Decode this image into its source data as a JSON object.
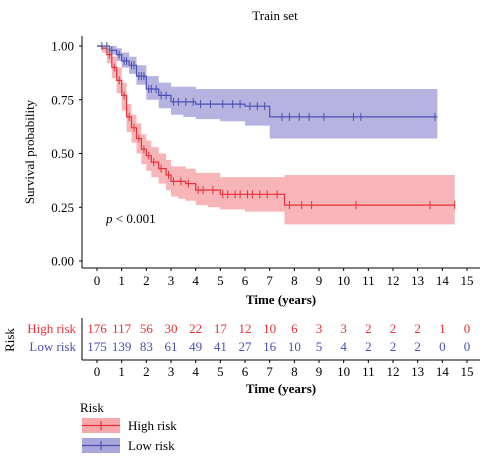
{
  "chart_data": {
    "type": "line",
    "title": "Train set",
    "xlabel": "Time (years)",
    "ylabel": "Survival probability",
    "xlim": [
      0,
      15
    ],
    "ylim": [
      0,
      1
    ],
    "x_ticks": [
      "0",
      "1",
      "2",
      "3",
      "4",
      "5",
      "6",
      "7",
      "8",
      "9",
      "10",
      "11",
      "12",
      "13",
      "14",
      "15"
    ],
    "y_ticks": [
      "0.00",
      "0.25",
      "0.50",
      "0.75",
      "1.00"
    ],
    "annotation_p": "p",
    "annotation_rest": " < 0.001",
    "colors": {
      "high": "#e8303a",
      "high_band": "#f7a8ab",
      "low": "#4a4fb0",
      "low_band": "#a9a6dc"
    },
    "series": [
      {
        "name": "High risk",
        "times": [
          0,
          0.2,
          0.4,
          0.6,
          0.8,
          1.0,
          1.2,
          1.4,
          1.6,
          1.8,
          2.0,
          2.2,
          2.5,
          2.8,
          3.0,
          3.3,
          3.6,
          4.0,
          4.5,
          5.0,
          5.5,
          6.0,
          6.5,
          7.0,
          7.5,
          7.6,
          8.0,
          9.0,
          10.0,
          11.0,
          12.0,
          13.0,
          14.0,
          14.5
        ],
        "values": [
          1.0,
          0.99,
          0.96,
          0.9,
          0.84,
          0.77,
          0.67,
          0.62,
          0.57,
          0.52,
          0.49,
          0.46,
          0.43,
          0.4,
          0.37,
          0.37,
          0.36,
          0.33,
          0.33,
          0.31,
          0.31,
          0.31,
          0.31,
          0.31,
          0.31,
          0.26,
          0.26,
          0.26,
          0.26,
          0.26,
          0.26,
          0.26,
          0.26,
          0.26
        ],
        "lower": [
          1.0,
          0.97,
          0.92,
          0.85,
          0.78,
          0.7,
          0.6,
          0.55,
          0.5,
          0.45,
          0.42,
          0.39,
          0.36,
          0.33,
          0.3,
          0.29,
          0.28,
          0.26,
          0.25,
          0.24,
          0.24,
          0.23,
          0.23,
          0.23,
          0.23,
          0.17,
          0.17,
          0.17,
          0.17,
          0.17,
          0.17,
          0.17,
          0.17,
          0.17
        ],
        "upper": [
          1.0,
          1.0,
          0.99,
          0.95,
          0.9,
          0.83,
          0.73,
          0.68,
          0.64,
          0.59,
          0.56,
          0.53,
          0.5,
          0.47,
          0.44,
          0.44,
          0.43,
          0.41,
          0.41,
          0.39,
          0.39,
          0.39,
          0.39,
          0.39,
          0.39,
          0.4,
          0.4,
          0.4,
          0.4,
          0.4,
          0.4,
          0.4,
          0.4,
          0.4
        ],
        "censor": [
          0.5,
          0.7,
          0.9,
          1.1,
          1.3,
          1.5,
          1.7,
          1.9,
          2.1,
          2.3,
          2.6,
          2.9,
          3.1,
          3.4,
          3.7,
          4.1,
          4.3,
          4.7,
          5.1,
          5.3,
          5.6,
          5.8,
          6.1,
          6.3,
          6.6,
          6.9,
          7.3,
          7.8,
          8.3,
          8.7,
          10.5,
          13.5,
          14.5
        ]
      },
      {
        "name": "Low risk",
        "times": [
          0,
          0.5,
          0.8,
          1.0,
          1.3,
          1.6,
          2.0,
          2.5,
          3.0,
          3.5,
          4.0,
          5.0,
          6.0,
          6.8,
          7.0,
          8.0,
          9.0,
          10.0,
          11.0,
          12.0,
          13.0,
          13.8
        ],
        "values": [
          1.0,
          0.98,
          0.96,
          0.93,
          0.91,
          0.86,
          0.8,
          0.77,
          0.74,
          0.74,
          0.73,
          0.73,
          0.72,
          0.72,
          0.67,
          0.67,
          0.67,
          0.67,
          0.67,
          0.67,
          0.67,
          0.67
        ],
        "lower": [
          1.0,
          0.96,
          0.93,
          0.9,
          0.87,
          0.82,
          0.75,
          0.71,
          0.68,
          0.67,
          0.66,
          0.65,
          0.63,
          0.63,
          0.57,
          0.57,
          0.57,
          0.57,
          0.57,
          0.57,
          0.57,
          0.57
        ],
        "upper": [
          1.0,
          1.0,
          0.99,
          0.97,
          0.95,
          0.91,
          0.86,
          0.83,
          0.81,
          0.81,
          0.8,
          0.8,
          0.8,
          0.8,
          0.8,
          0.8,
          0.8,
          0.8,
          0.8,
          0.8,
          0.8,
          0.8
        ],
        "censor": [
          0.2,
          0.4,
          0.6,
          0.9,
          1.1,
          1.2,
          1.4,
          1.5,
          1.7,
          1.8,
          1.9,
          2.1,
          2.2,
          2.4,
          2.6,
          2.8,
          3.1,
          3.3,
          3.6,
          3.9,
          4.2,
          4.6,
          5.1,
          5.5,
          5.8,
          6.2,
          6.5,
          6.8,
          7.5,
          7.8,
          8.2,
          8.6,
          9.2,
          10.4,
          10.7,
          13.7
        ]
      }
    ],
    "risk_table": {
      "title": "Risk",
      "xlabel": "Time (years)",
      "rows": [
        {
          "name": "High risk",
          "counts": [
            "176",
            "117",
            "56",
            "30",
            "22",
            "17",
            "12",
            "10",
            "6",
            "3",
            "3",
            "2",
            "2",
            "2",
            "1",
            "0"
          ]
        },
        {
          "name": "Low risk",
          "counts": [
            "175",
            "139",
            "83",
            "61",
            "49",
            "41",
            "27",
            "16",
            "10",
            "5",
            "4",
            "2",
            "2",
            "2",
            "0",
            "0"
          ]
        }
      ]
    },
    "legend": {
      "title": "Risk",
      "items": [
        "High risk",
        "Low risk"
      ]
    }
  }
}
